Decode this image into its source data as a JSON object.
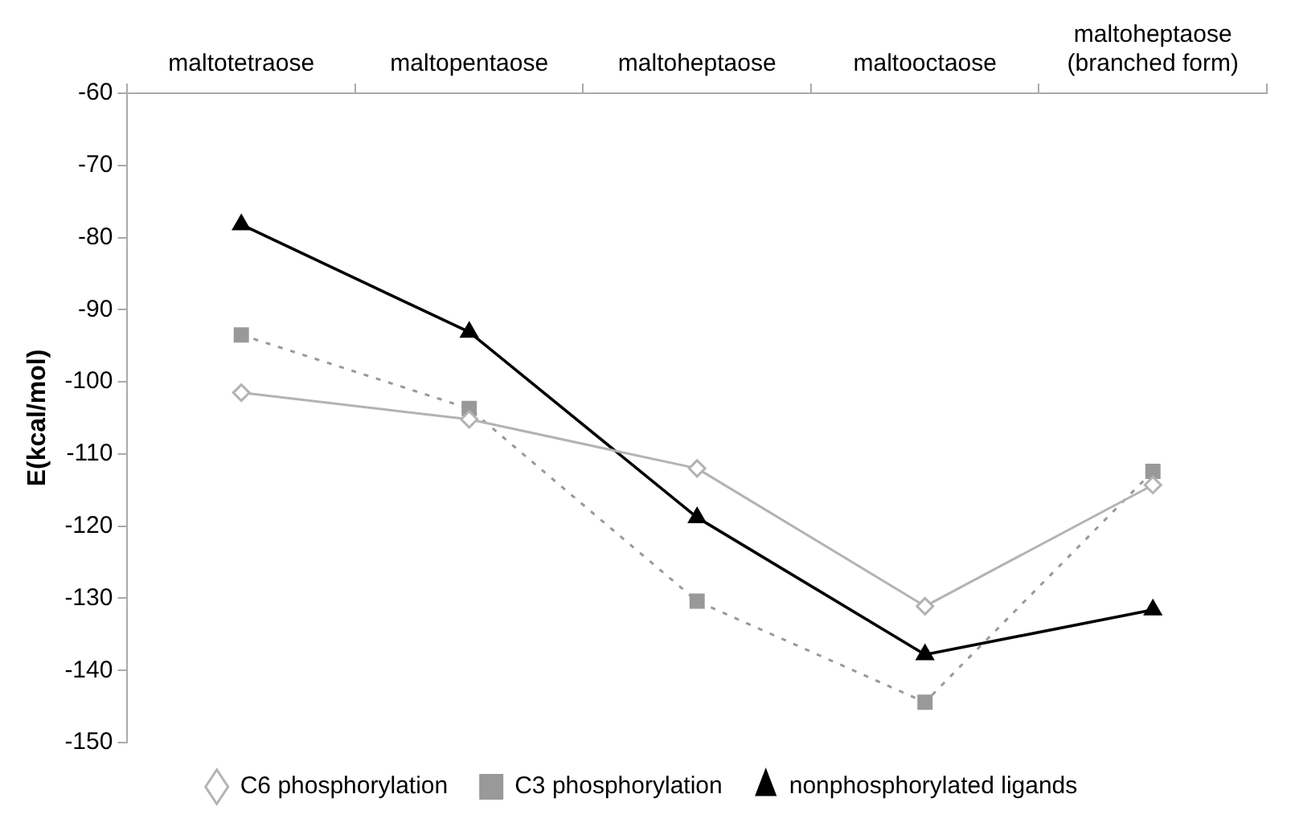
{
  "chart_data": {
    "type": "line",
    "ylabel": "E(kcal/mol)",
    "categories": [
      "maltotetraose",
      "maltopentaose",
      "maltoheptaose",
      "maltooctaose",
      "maltoheptaose\n(branched form)"
    ],
    "series": [
      {
        "name": "C6 phosphorylation",
        "color": "#b3b3b3",
        "marker": "diamond",
        "line_style": "solid",
        "values": [
          -101.5,
          -105.2,
          -112,
          -131.1,
          -114.3
        ]
      },
      {
        "name": "C3 phosphorylation",
        "color": "#999999",
        "marker": "square",
        "line_style": "dotted",
        "values": [
          -93.5,
          -103.7,
          -130.4,
          -144.4,
          -112.4
        ]
      },
      {
        "name": "nonphosphorylated ligands",
        "color": "#000000",
        "marker": "triangle",
        "line_style": "solid",
        "values": [
          -78.2,
          -93.1,
          -118.8,
          -137.8,
          -131.6
        ]
      }
    ],
    "ylim": [
      -150,
      -60
    ],
    "yticks": [
      -150,
      -140,
      -130,
      -120,
      -110,
      -100,
      -90,
      -80,
      -70,
      -60
    ],
    "grid": false,
    "legend": "bottom"
  }
}
